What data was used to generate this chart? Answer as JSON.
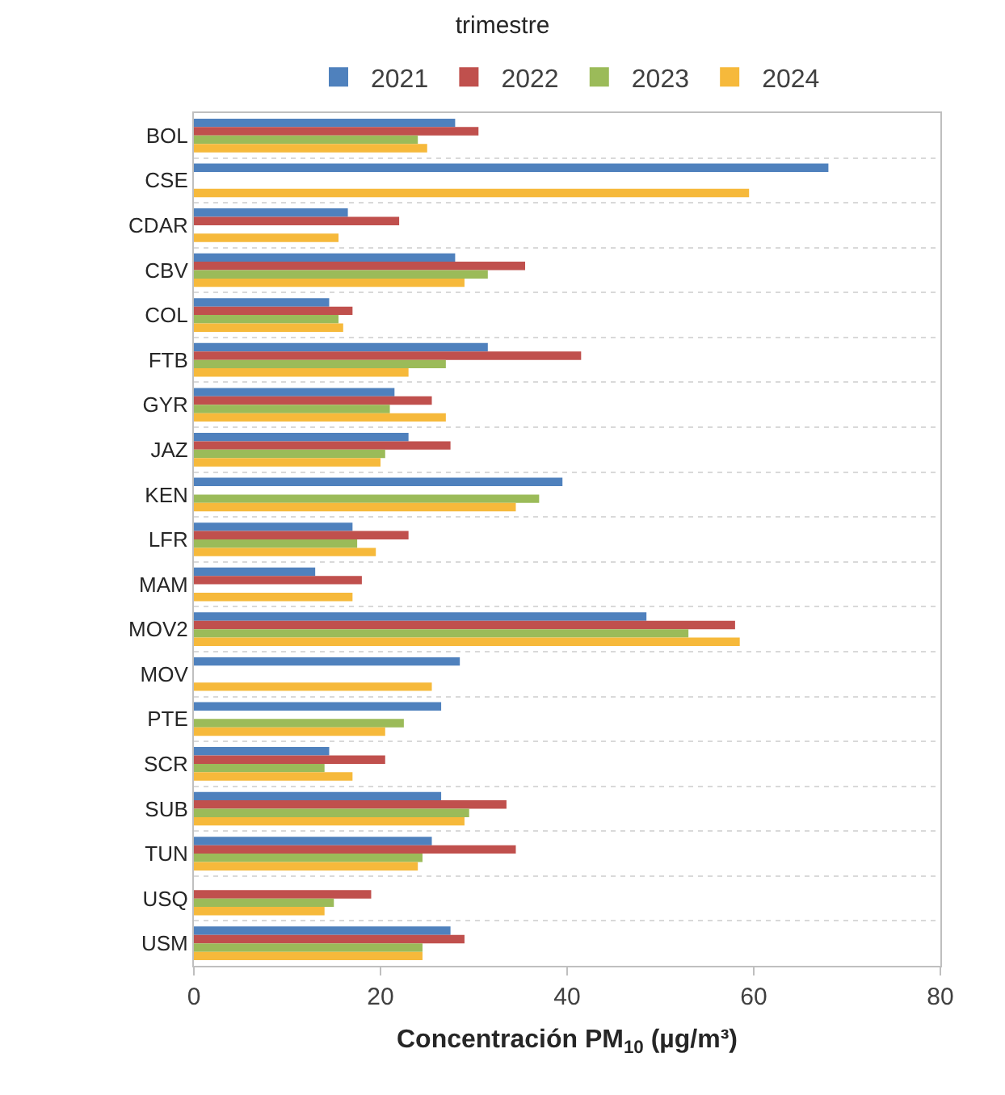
{
  "chart_data": {
    "type": "bar",
    "orientation": "horizontal",
    "title": "trimestre",
    "xlabel": "Concentración PM$_{10}$ (µg/m³)",
    "categories": [
      "BOL",
      "CSE",
      "CDAR",
      "CBV",
      "COL",
      "FTB",
      "GYR",
      "JAZ",
      "KEN",
      "LFR",
      "MAM",
      "MOV2",
      "MOV",
      "PTE",
      "SCR",
      "SUB",
      "TUN",
      "USQ",
      "USM"
    ],
    "series": [
      {
        "name": "2021",
        "color": "#4f81bd",
        "values": [
          28,
          68,
          16.5,
          28,
          14.5,
          31.5,
          21.5,
          23,
          39.5,
          17,
          13,
          48.5,
          28.5,
          26.5,
          14.5,
          26.5,
          25.5,
          null,
          27.5
        ]
      },
      {
        "name": "2022",
        "color": "#c0504d",
        "values": [
          30.5,
          null,
          22,
          35.5,
          17,
          41.5,
          25.5,
          27.5,
          null,
          23,
          18,
          58,
          null,
          null,
          20.5,
          33.5,
          34.5,
          19,
          29
        ]
      },
      {
        "name": "2023",
        "color": "#9bbb59",
        "values": [
          24,
          null,
          null,
          31.5,
          15.5,
          27,
          21,
          20.5,
          37,
          17.5,
          null,
          53,
          null,
          22.5,
          14,
          29.5,
          24.5,
          15,
          24.5
        ]
      },
      {
        "name": "2024",
        "color": "#f6b93b",
        "values": [
          25,
          59.5,
          15.5,
          29,
          16,
          23,
          27,
          20,
          34.5,
          19.5,
          17,
          58.5,
          25.5,
          20.5,
          17,
          29,
          24,
          14,
          24.5
        ]
      }
    ],
    "xlim": [
      0,
      80
    ],
    "xticks": [
      0,
      20,
      40,
      60,
      80
    ],
    "grid": "y",
    "legend": "top"
  }
}
